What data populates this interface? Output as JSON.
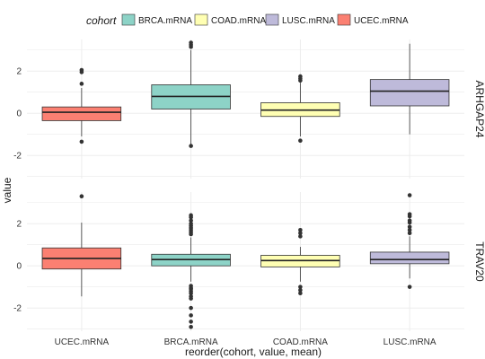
{
  "chart_data": {
    "type": "boxplot",
    "xlabel": "reorder(cohort, value, mean)",
    "ylabel": "value",
    "categories": [
      "UCEC.mRNA",
      "BRCA.mRNA",
      "COAD.mRNA",
      "LUSC.mRNA"
    ],
    "legend": {
      "title": "cohort",
      "placement": "top",
      "entries": [
        {
          "label": "BRCA.mRNA",
          "color": "#8dd3c7"
        },
        {
          "label": "COAD.mRNA",
          "color": "#ffffb3"
        },
        {
          "label": "LUSC.mRNA",
          "color": "#bebada"
        },
        {
          "label": "UCEC.mRNA",
          "color": "#fb8072"
        }
      ]
    },
    "colors": {
      "UCEC.mRNA": "#fb8072",
      "BRCA.mRNA": "#8dd3c7",
      "COAD.mRNA": "#ffffb3",
      "LUSC.mRNA": "#bebada"
    },
    "y_ticks": [
      -2,
      0,
      2
    ],
    "panels": [
      {
        "label": "ARHGAP24",
        "ylim": [
          -3.1,
          3.5
        ],
        "boxes": [
          {
            "cohort": "UCEC.mRNA",
            "q1": -0.35,
            "median": 0.05,
            "q3": 0.3,
            "whisker_low": -1.1,
            "whisker_high": 1.2,
            "outliers": [
              2.05,
              1.95,
              1.4,
              -1.35
            ]
          },
          {
            "cohort": "BRCA.mRNA",
            "q1": 0.2,
            "median": 0.8,
            "q3": 1.35,
            "whisker_low": -1.5,
            "whisker_high": 3.0,
            "outliers": [
              3.35,
              3.25,
              3.15,
              -1.55
            ]
          },
          {
            "cohort": "COAD.mRNA",
            "q1": -0.15,
            "median": 0.15,
            "q3": 0.5,
            "whisker_low": -1.1,
            "whisker_high": 1.45,
            "outliers": [
              1.75,
              1.65,
              1.55,
              -1.3
            ]
          },
          {
            "cohort": "LUSC.mRNA",
            "q1": 0.35,
            "median": 1.05,
            "q3": 1.6,
            "whisker_low": -1.0,
            "whisker_high": 3.3,
            "outliers": []
          }
        ]
      },
      {
        "label": "TRAV20",
        "ylim": [
          -3.1,
          3.5
        ],
        "boxes": [
          {
            "cohort": "UCEC.mRNA",
            "q1": -0.15,
            "median": 0.35,
            "q3": 0.85,
            "whisker_low": -1.45,
            "whisker_high": 2.05,
            "outliers": [
              3.3
            ]
          },
          {
            "cohort": "BRCA.mRNA",
            "q1": 0.0,
            "median": 0.3,
            "q3": 0.55,
            "whisker_low": -0.75,
            "whisker_high": 1.35,
            "outliers": [
              2.4,
              2.3,
              2.15,
              2.0,
              1.9,
              1.8,
              1.7,
              1.6,
              1.5,
              -0.95,
              -1.05,
              -1.1,
              -1.2,
              -1.3,
              -1.45,
              -1.55,
              -2.0,
              -2.35,
              -2.65,
              -2.9
            ]
          },
          {
            "cohort": "COAD.mRNA",
            "q1": -0.05,
            "median": 0.25,
            "q3": 0.5,
            "whisker_low": -0.75,
            "whisker_high": 0.9,
            "outliers": [
              1.7,
              1.55,
              1.4,
              -1.0,
              -1.15,
              -1.3
            ]
          },
          {
            "cohort": "LUSC.mRNA",
            "q1": 0.1,
            "median": 0.3,
            "q3": 0.65,
            "whisker_low": -0.6,
            "whisker_high": 1.4,
            "outliers": [
              3.35,
              2.45,
              2.35,
              2.15,
              2.05,
              1.85,
              1.7,
              1.55,
              -1.0
            ]
          }
        ]
      }
    ]
  }
}
